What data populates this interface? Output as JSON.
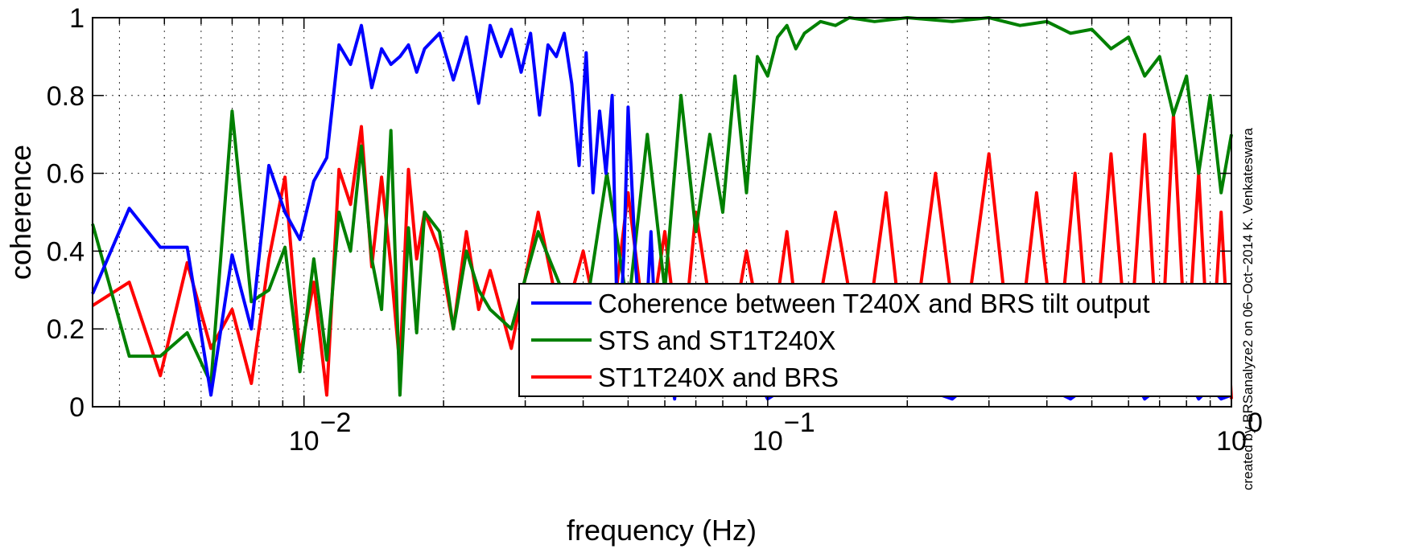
{
  "chart_data": {
    "type": "line",
    "xscale": "log",
    "xlim": [
      0.0035,
      1
    ],
    "ylim": [
      0,
      1
    ],
    "xlabel": "frequency (Hz)",
    "ylabel": "coherence",
    "grid": true,
    "legend_position": "bottom-right",
    "x_ticks": [
      {
        "value": 0.01,
        "base": "10",
        "exp": "−2"
      },
      {
        "value": 0.1,
        "base": "10",
        "exp": "−1"
      },
      {
        "value": 1,
        "base": "10",
        "exp": "0"
      }
    ],
    "y_ticks": [
      {
        "value": 0,
        "label": "0"
      },
      {
        "value": 0.2,
        "label": "0.2"
      },
      {
        "value": 0.4,
        "label": "0.4"
      },
      {
        "value": 0.6,
        "label": "0.6"
      },
      {
        "value": 0.8,
        "label": "0.8"
      },
      {
        "value": 1,
        "label": "1"
      }
    ],
    "credit": "created by BRSanalyze2 on 06−Oct−2014 K. Venkateswara",
    "series": [
      {
        "name": "Coherence between T240X and BRS tilt output",
        "color": "#0000ff",
        "x": [
          0.0035,
          0.0042,
          0.0049,
          0.0056,
          0.0063,
          0.007,
          0.0077,
          0.0084,
          0.0091,
          0.0098,
          0.0105,
          0.0112,
          0.0119,
          0.0126,
          0.0133,
          0.014,
          0.0147,
          0.0154,
          0.0161,
          0.0168,
          0.0175,
          0.0182,
          0.0196,
          0.021,
          0.0224,
          0.0238,
          0.0252,
          0.0266,
          0.028,
          0.0294,
          0.0308,
          0.0322,
          0.0336,
          0.035,
          0.0364,
          0.0378,
          0.0392,
          0.0406,
          0.042,
          0.0434,
          0.0448,
          0.0462,
          0.0476,
          0.049,
          0.05,
          0.052,
          0.054,
          0.056,
          0.058,
          0.06,
          0.063,
          0.066,
          0.07,
          0.075,
          0.08,
          0.09,
          0.1,
          0.12,
          0.15,
          0.2,
          0.25,
          0.3,
          0.35,
          0.4,
          0.45,
          0.5,
          0.55,
          0.6,
          0.65,
          0.7,
          0.75,
          0.8,
          0.85,
          0.9,
          0.95,
          1.0
        ],
        "y": [
          0.29,
          0.51,
          0.41,
          0.41,
          0.03,
          0.39,
          0.2,
          0.62,
          0.5,
          0.43,
          0.58,
          0.64,
          0.93,
          0.88,
          0.98,
          0.82,
          0.92,
          0.88,
          0.9,
          0.93,
          0.86,
          0.92,
          0.96,
          0.84,
          0.95,
          0.78,
          0.98,
          0.9,
          0.97,
          0.86,
          0.96,
          0.75,
          0.93,
          0.9,
          0.96,
          0.83,
          0.62,
          0.91,
          0.55,
          0.76,
          0.6,
          0.8,
          0.1,
          0.4,
          0.77,
          0.35,
          0.1,
          0.45,
          0.05,
          0.2,
          0.02,
          0.3,
          0.05,
          0.2,
          0.03,
          0.12,
          0.02,
          0.08,
          0.03,
          0.06,
          0.02,
          0.1,
          0.03,
          0.05,
          0.02,
          0.06,
          0.03,
          0.1,
          0.02,
          0.05,
          0.03,
          0.08,
          0.02,
          0.05,
          0.02,
          0.03
        ]
      },
      {
        "name": "STS and ST1T240X",
        "color": "#008000",
        "x": [
          0.0035,
          0.0042,
          0.0049,
          0.0056,
          0.0063,
          0.007,
          0.0077,
          0.0084,
          0.0091,
          0.0098,
          0.0105,
          0.0112,
          0.0119,
          0.0126,
          0.0133,
          0.014,
          0.0147,
          0.0154,
          0.0161,
          0.0168,
          0.0175,
          0.0182,
          0.0196,
          0.021,
          0.0224,
          0.0238,
          0.0252,
          0.028,
          0.032,
          0.036,
          0.04,
          0.045,
          0.05,
          0.055,
          0.06,
          0.065,
          0.07,
          0.075,
          0.08,
          0.085,
          0.09,
          0.095,
          0.1,
          0.105,
          0.11,
          0.115,
          0.12,
          0.13,
          0.14,
          0.15,
          0.17,
          0.2,
          0.25,
          0.3,
          0.35,
          0.4,
          0.45,
          0.5,
          0.55,
          0.6,
          0.65,
          0.7,
          0.75,
          0.8,
          0.85,
          0.9,
          0.95,
          1.0
        ],
        "y": [
          0.47,
          0.13,
          0.13,
          0.19,
          0.06,
          0.76,
          0.27,
          0.3,
          0.41,
          0.09,
          0.38,
          0.12,
          0.5,
          0.4,
          0.67,
          0.38,
          0.25,
          0.71,
          0.03,
          0.46,
          0.19,
          0.5,
          0.45,
          0.2,
          0.4,
          0.3,
          0.25,
          0.2,
          0.45,
          0.3,
          0.2,
          0.6,
          0.25,
          0.7,
          0.3,
          0.8,
          0.45,
          0.7,
          0.5,
          0.85,
          0.55,
          0.9,
          0.85,
          0.95,
          0.98,
          0.92,
          0.96,
          0.99,
          0.98,
          1.0,
          0.99,
          1.0,
          0.99,
          1.0,
          0.98,
          0.99,
          0.96,
          0.97,
          0.92,
          0.95,
          0.85,
          0.9,
          0.75,
          0.85,
          0.6,
          0.8,
          0.55,
          0.7
        ]
      },
      {
        "name": "ST1T240X and BRS",
        "color": "#ff0000",
        "x": [
          0.0035,
          0.0042,
          0.0049,
          0.0056,
          0.0063,
          0.007,
          0.0077,
          0.0084,
          0.0091,
          0.0098,
          0.0105,
          0.0112,
          0.0119,
          0.0126,
          0.0133,
          0.014,
          0.0147,
          0.0154,
          0.0161,
          0.0168,
          0.0175,
          0.0182,
          0.0196,
          0.021,
          0.0224,
          0.0238,
          0.0252,
          0.028,
          0.032,
          0.036,
          0.04,
          0.045,
          0.05,
          0.055,
          0.06,
          0.065,
          0.07,
          0.08,
          0.09,
          0.1,
          0.11,
          0.12,
          0.14,
          0.16,
          0.18,
          0.2,
          0.23,
          0.26,
          0.3,
          0.34,
          0.38,
          0.42,
          0.46,
          0.5,
          0.55,
          0.6,
          0.65,
          0.7,
          0.75,
          0.8,
          0.85,
          0.9,
          0.95,
          1.0
        ],
        "y": [
          0.26,
          0.32,
          0.08,
          0.37,
          0.15,
          0.25,
          0.06,
          0.38,
          0.59,
          0.13,
          0.32,
          0.03,
          0.61,
          0.52,
          0.72,
          0.36,
          0.59,
          0.36,
          0.1,
          0.61,
          0.38,
          0.5,
          0.4,
          0.2,
          0.45,
          0.25,
          0.35,
          0.15,
          0.5,
          0.2,
          0.4,
          0.1,
          0.55,
          0.15,
          0.45,
          0.1,
          0.5,
          0.05,
          0.4,
          0.1,
          0.45,
          0.05,
          0.5,
          0.1,
          0.55,
          0.05,
          0.6,
          0.1,
          0.65,
          0.05,
          0.55,
          0.1,
          0.6,
          0.05,
          0.65,
          0.1,
          0.7,
          0.05,
          0.75,
          0.1,
          0.6,
          0.05,
          0.5,
          0.02
        ]
      }
    ]
  }
}
